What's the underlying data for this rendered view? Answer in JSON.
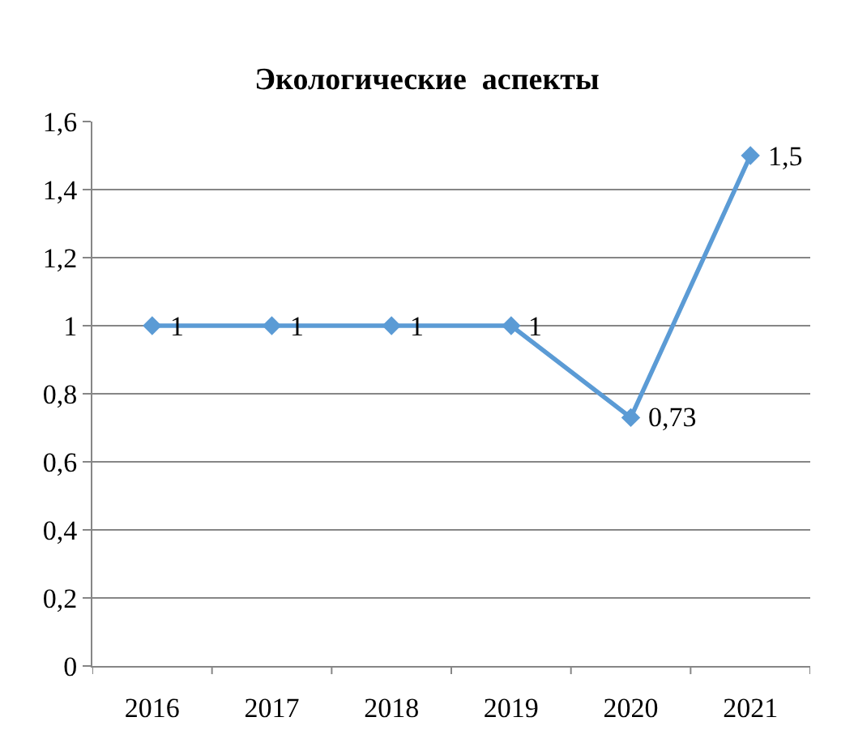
{
  "chart_data": {
    "type": "line",
    "title": "Экологические  аспекты",
    "categories": [
      "2016",
      "2017",
      "2018",
      "2019",
      "2020",
      "2021"
    ],
    "series": [
      {
        "color": "#5b9bd5",
        "values": [
          1,
          1,
          1,
          1,
          0.73,
          1.5
        ],
        "value_labels": [
          "1",
          "1",
          "1",
          "1",
          "0,73",
          "1,5"
        ]
      }
    ],
    "ylim": [
      0,
      1.6
    ],
    "yticks": [
      0,
      {
        "value": 0.2,
        "label": "0,2"
      },
      {
        "value": 0.4,
        "label": "0,4"
      },
      {
        "value": 0.6,
        "label": "0,6"
      },
      {
        "value": 0.8,
        "label": "0,8"
      },
      1,
      {
        "value": 1.2,
        "label": "1,2"
      },
      {
        "value": 1.4,
        "label": "1,4"
      },
      {
        "value": 1.6,
        "label": "1,6"
      }
    ],
    "grid": "y",
    "marker": "diamond",
    "line_style": "solid"
  }
}
